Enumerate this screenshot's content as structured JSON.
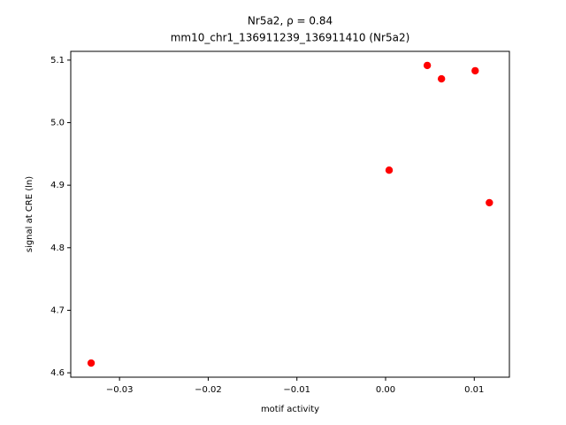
{
  "chart_data": {
    "type": "scatter",
    "title": "Nr5a2, ρ = 0.84",
    "subtitle": "mm10_chr1_136911239_136911410 (Nr5a2)",
    "xlabel": "motif activity",
    "ylabel": "signal at CRE (ln)",
    "x": [
      -0.0332,
      0.0004,
      0.0047,
      0.0063,
      0.0101,
      0.0117
    ],
    "values": [
      4.6156,
      4.924,
      5.0915,
      5.07,
      5.083,
      4.872
    ],
    "color": "#ff0000",
    "xlim": [
      -0.0355,
      0.01396
    ],
    "ylim": [
      4.593,
      5.114
    ],
    "xticks": [
      {
        "value": -0.03,
        "label": "−0.03"
      },
      {
        "value": -0.02,
        "label": "−0.02"
      },
      {
        "value": -0.01,
        "label": "−0.01"
      },
      {
        "value": 0,
        "label": "0.00"
      },
      0.01
    ],
    "yticks": [
      4.6,
      4.7,
      4.8,
      4.9,
      {
        "value": 5.0,
        "label": "5.0"
      },
      5.1
    ],
    "grid": false
  }
}
